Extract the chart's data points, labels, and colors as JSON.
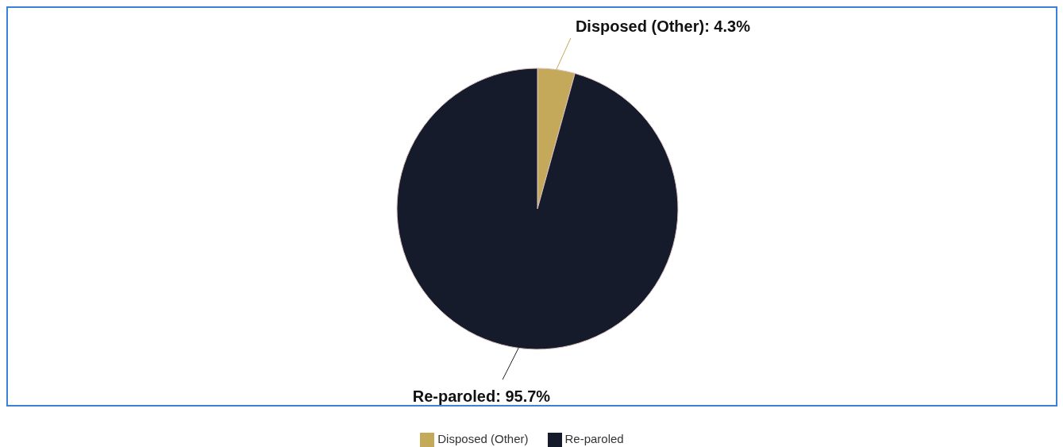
{
  "chart_data": {
    "type": "pie",
    "categories": [
      "Disposed (Other)",
      "Re-paroled"
    ],
    "values": [
      4.3,
      95.7
    ],
    "colors": [
      "#c4a95a",
      "#161b2b"
    ],
    "value_labels": [
      "Disposed (Other): 4.3%",
      "Re-paroled: 95.7%"
    ],
    "legend": "bottom"
  }
}
